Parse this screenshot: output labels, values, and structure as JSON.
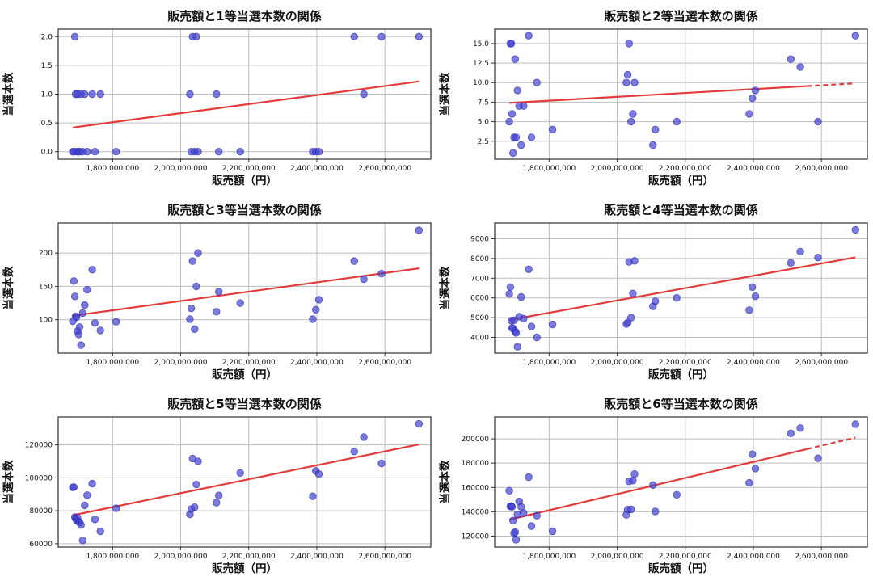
{
  "page": {
    "background": "#ffffff"
  },
  "colors": {
    "dot_fill": "#4343cf",
    "dot_edge": "#2b2bb4",
    "trend_line": "#e23b3b",
    "grid": "#bdbdbd",
    "spine": "#2e2e2e",
    "text": "#111111"
  },
  "shared": {
    "xlabel": "販売額（円）",
    "ylabel": "当選本数",
    "grid": true,
    "legend": "none",
    "xlim": [
      1640000000,
      2735000000
    ],
    "x_ticks": [
      1800000000,
      2000000000,
      2200000000,
      2400000000,
      2600000000
    ],
    "x_tick_labels": [
      "1,800,000,000",
      "2,000,000,000",
      "2,200,000,000",
      "2,400,000,000",
      "2,600,000,000"
    ],
    "x_values_yen": [
      1683000000,
      1686000000,
      1689000000,
      1691000000,
      1694000000,
      1697000000,
      1700000000,
      1703000000,
      1707000000,
      1712000000,
      1718000000,
      1725000000,
      1740000000,
      1748000000,
      1764000000,
      1810000000,
      2027000000,
      2031000000,
      2035000000,
      2041000000,
      2046000000,
      2051000000,
      2105000000,
      2112000000,
      2175000000,
      2388000000,
      2397000000,
      2406000000,
      2510000000,
      2538000000,
      2590000000,
      2700000000
    ]
  },
  "chart_data": [
    {
      "type": "scatter",
      "title": "販売額と1等当選本数の関係",
      "xlabel": "販売額（円）",
      "ylabel": "当選本数",
      "ylim": [
        -0.13,
        2.13
      ],
      "y_ticks": [
        0.0,
        0.5,
        1.0,
        1.5,
        2.0
      ],
      "y_tick_labels": [
        "0.0",
        "0.5",
        "1.0",
        "1.5",
        "2.0"
      ],
      "y_values": [
        0,
        0,
        2,
        1,
        0,
        1,
        0,
        0,
        1,
        0,
        1,
        0,
        1,
        0,
        1,
        0,
        1,
        0,
        2,
        0,
        2,
        0,
        1,
        0,
        0,
        0,
        0,
        0,
        2,
        1,
        2,
        2
      ],
      "trend": {
        "x_start": 1683000000,
        "y_start": 0.42,
        "x_end": 2700000000,
        "y_end": 1.22,
        "dashed_tail": false
      }
    },
    {
      "type": "scatter",
      "title": "販売額と2等当選本数の関係",
      "xlabel": "販売額（円）",
      "ylabel": "当選本数",
      "ylim": [
        0.2,
        16.85
      ],
      "y_ticks": [
        2.5,
        5.0,
        7.5,
        10.0,
        12.5,
        15.0
      ],
      "y_tick_labels": [
        "2.5",
        "5.0",
        "7.5",
        "10.0",
        "12.5",
        "15.0"
      ],
      "y_values": [
        5,
        15,
        15,
        6,
        1,
        3,
        13,
        3,
        9,
        7,
        2,
        7,
        16,
        3,
        10,
        4,
        10,
        11,
        15,
        5,
        6,
        10,
        2,
        4,
        5,
        6,
        8,
        9,
        13,
        12,
        5,
        16
      ],
      "trend": {
        "x_start": 1683000000,
        "y_start": 7.4,
        "x_end": 2700000000,
        "y_end": 9.9,
        "dashed_tail": true
      }
    },
    {
      "type": "scatter",
      "title": "販売額と3等当選本数の関係",
      "xlabel": "販売額（円）",
      "ylabel": "当選本数",
      "ylim": [
        50,
        245
      ],
      "y_ticks": [
        100,
        150,
        200
      ],
      "y_tick_labels": [
        "100",
        "150",
        "200"
      ],
      "y_values": [
        98,
        158,
        135,
        105,
        104,
        83,
        78,
        89,
        62,
        110,
        122,
        145,
        175,
        95,
        84,
        97,
        101,
        117,
        188,
        86,
        150,
        200,
        112,
        142,
        125,
        101,
        115,
        130,
        188,
        161,
        169,
        234
      ],
      "trend": {
        "x_start": 1683000000,
        "y_start": 106,
        "x_end": 2700000000,
        "y_end": 177,
        "dashed_tail": false
      }
    },
    {
      "type": "scatter",
      "title": "販売額と4等当選本数の関係",
      "xlabel": "販売額（円）",
      "ylabel": "当選本数",
      "ylim": [
        3200,
        9800
      ],
      "y_ticks": [
        4000,
        5000,
        6000,
        7000,
        8000,
        9000
      ],
      "y_tick_labels": [
        "4000",
        "5000",
        "6000",
        "7000",
        "8000",
        "9000"
      ],
      "y_values": [
        6200,
        6550,
        4850,
        4480,
        4450,
        4870,
        4300,
        4230,
        3520,
        5050,
        6050,
        4950,
        7450,
        4550,
        4000,
        4650,
        4680,
        4750,
        7830,
        5000,
        6220,
        7880,
        5570,
        5830,
        6000,
        5380,
        6550,
        6080,
        7780,
        8350,
        8050,
        9450
      ],
      "trend": {
        "x_start": 1683000000,
        "y_start": 4880,
        "x_end": 2700000000,
        "y_end": 8060,
        "dashed_tail": false
      }
    },
    {
      "type": "scatter",
      "title": "販売額と5等当選本数の関係",
      "xlabel": "販売額（円）",
      "ylabel": "当選本数",
      "ylim": [
        58000,
        137000
      ],
      "y_ticks": [
        60000,
        80000,
        100000,
        120000
      ],
      "y_tick_labels": [
        "60000",
        "80000",
        "100000",
        "120000"
      ],
      "y_values": [
        94200,
        94400,
        76200,
        75300,
        74200,
        75700,
        73400,
        72900,
        71400,
        62000,
        83300,
        89500,
        96500,
        74800,
        67500,
        81500,
        77800,
        81000,
        111800,
        82200,
        96000,
        110000,
        85000,
        89300,
        103000,
        88800,
        104200,
        102300,
        116000,
        124800,
        108800,
        132800
      ],
      "trend": {
        "x_start": 1683000000,
        "y_start": 77300,
        "x_end": 2700000000,
        "y_end": 120300,
        "dashed_tail": false
      }
    },
    {
      "type": "scatter",
      "title": "販売額と6等当選本数の関係",
      "xlabel": "販売額（円）",
      "ylabel": "当選本数",
      "ylim": [
        111000,
        218000
      ],
      "y_ticks": [
        120000,
        140000,
        160000,
        180000,
        200000
      ],
      "y_tick_labels": [
        "120000",
        "140000",
        "160000",
        "180000",
        "200000"
      ],
      "y_values": [
        157300,
        144400,
        144700,
        144100,
        132800,
        122400,
        123200,
        117000,
        137800,
        148500,
        144000,
        139000,
        168500,
        128300,
        136800,
        124000,
        137500,
        141800,
        165000,
        142000,
        165600,
        171000,
        162000,
        140300,
        154000,
        163800,
        187300,
        175500,
        204500,
        208800,
        184000,
        212000
      ],
      "trend": {
        "x_start": 1683000000,
        "y_start": 133500,
        "x_end": 2700000000,
        "y_end": 201000,
        "dashed_tail": true
      }
    }
  ]
}
